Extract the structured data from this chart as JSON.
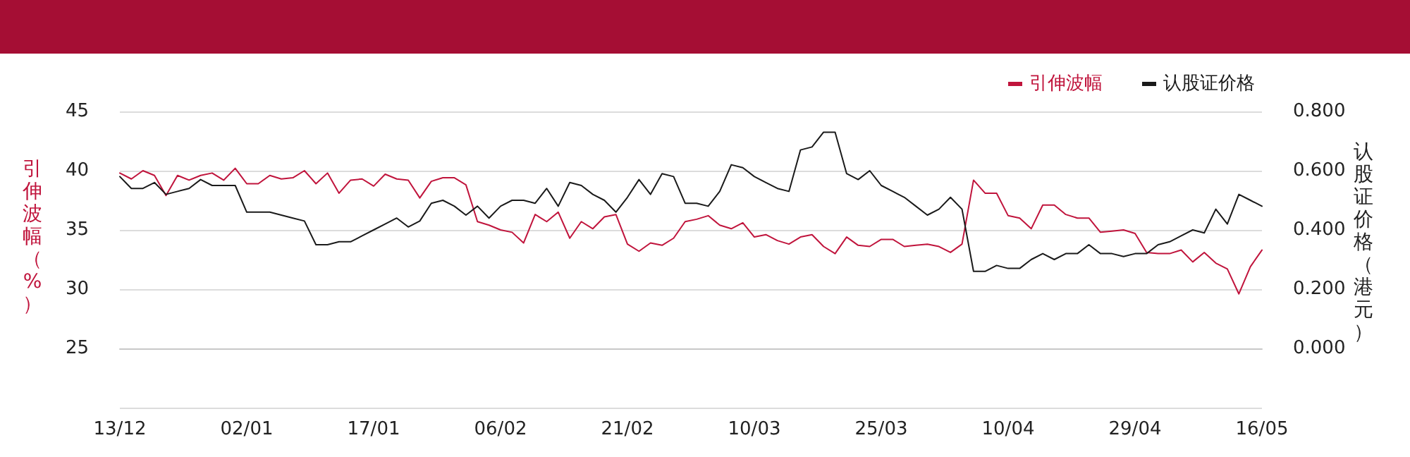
{
  "chart_data": {
    "type": "line",
    "categories": [
      "13/12",
      null,
      null,
      null,
      null,
      null,
      null,
      null,
      null,
      null,
      null,
      "02/01",
      null,
      null,
      null,
      null,
      null,
      null,
      null,
      null,
      null,
      null,
      "17/01",
      null,
      null,
      null,
      null,
      null,
      null,
      null,
      null,
      null,
      null,
      "06/02",
      null,
      null,
      null,
      null,
      null,
      null,
      null,
      null,
      null,
      null,
      "21/02",
      null,
      null,
      null,
      null,
      null,
      null,
      null,
      null,
      null,
      null,
      "10/03",
      null,
      null,
      null,
      null,
      null,
      null,
      null,
      null,
      null,
      null,
      "25/03",
      null,
      null,
      null,
      null,
      null,
      null,
      null,
      null,
      null,
      null,
      "10/04",
      null,
      null,
      null,
      null,
      null,
      null,
      null,
      null,
      null,
      null,
      "29/04",
      null,
      null,
      null,
      null,
      null,
      null,
      null,
      null,
      null,
      null,
      "16/05"
    ],
    "series": [
      {
        "name": "引伸波幅",
        "color": "#c0143c",
        "values": [
          39.8,
          39.3,
          40.0,
          39.6,
          37.9,
          39.6,
          39.2,
          39.6,
          39.8,
          39.2,
          40.2,
          38.9,
          38.9,
          39.6,
          39.3,
          39.4,
          40.0,
          38.9,
          39.8,
          38.1,
          39.2,
          39.3,
          38.7,
          39.7,
          39.3,
          39.2,
          37.7,
          39.1,
          39.4,
          39.4,
          38.8,
          35.7,
          35.4,
          35.0,
          34.8,
          33.9,
          36.3,
          35.7,
          36.5,
          34.3,
          35.7,
          35.1,
          36.1,
          36.3,
          33.8,
          33.2,
          33.9,
          33.7,
          34.3,
          35.7,
          35.9,
          36.2,
          35.4,
          35.1,
          35.6,
          34.4,
          34.6,
          34.1,
          33.8,
          34.4,
          34.6,
          33.6,
          33.0,
          34.4,
          33.7,
          33.6,
          34.2,
          34.2,
          33.6,
          33.7,
          33.8,
          33.6,
          33.1,
          33.8,
          39.2,
          38.1,
          38.1,
          36.2,
          36.0,
          35.1,
          37.1,
          37.1,
          36.3,
          36.0,
          36.0,
          34.8,
          34.9,
          35.0,
          34.7,
          33.1,
          33.0,
          33.0,
          33.3,
          32.3,
          33.1,
          32.2,
          31.7,
          29.6,
          31.9,
          33.3
        ]
      },
      {
        "name": "认股证价格",
        "color": "#1a1a1a",
        "axis": "y2",
        "values": [
          0.58,
          0.54,
          0.54,
          0.56,
          0.52,
          0.53,
          0.54,
          0.57,
          0.55,
          0.55,
          0.55,
          0.46,
          0.46,
          0.46,
          0.45,
          0.44,
          0.43,
          0.35,
          0.35,
          0.36,
          0.36,
          0.38,
          0.4,
          0.42,
          0.44,
          0.41,
          0.43,
          0.49,
          0.5,
          0.48,
          0.45,
          0.48,
          0.44,
          0.48,
          0.5,
          0.5,
          0.49,
          0.54,
          0.48,
          0.56,
          0.55,
          0.52,
          0.5,
          0.46,
          0.51,
          0.57,
          0.52,
          0.59,
          0.58,
          0.49,
          0.49,
          0.48,
          0.53,
          0.62,
          0.61,
          0.58,
          0.56,
          0.54,
          0.53,
          0.67,
          0.68,
          0.73,
          0.73,
          0.59,
          0.57,
          0.6,
          0.55,
          0.53,
          0.51,
          0.48,
          0.45,
          0.47,
          0.51,
          0.47,
          0.26,
          0.26,
          0.28,
          0.27,
          0.27,
          0.3,
          0.32,
          0.3,
          0.32,
          0.32,
          0.35,
          0.32,
          0.32,
          0.31,
          0.32,
          0.32,
          0.35,
          0.36,
          0.38,
          0.4,
          0.39,
          0.47,
          0.42,
          0.52,
          0.5,
          0.48
        ]
      }
    ],
    "ylabel": "引伸波幅（%）",
    "y2label": "认股证价格（港元）",
    "ylim": [
      20,
      45
    ],
    "yticks": [
      {
        "value": 20,
        "label": null
      },
      25,
      30,
      35,
      40,
      45
    ],
    "y2lim": [
      -0.2,
      0.8
    ],
    "y2ticks": [
      {
        "value": -0.2,
        "label": null
      },
      {
        "value": 0,
        "label": "0.000"
      },
      {
        "value": 0.2,
        "label": "0.200"
      },
      {
        "value": 0.4,
        "label": "0.400"
      },
      {
        "value": 0.6,
        "label": "0.600"
      },
      {
        "value": 0.8,
        "label": "0.800"
      }
    ],
    "grid": "y",
    "legend": "top right",
    "marker": "none",
    "line_style": "solid"
  }
}
